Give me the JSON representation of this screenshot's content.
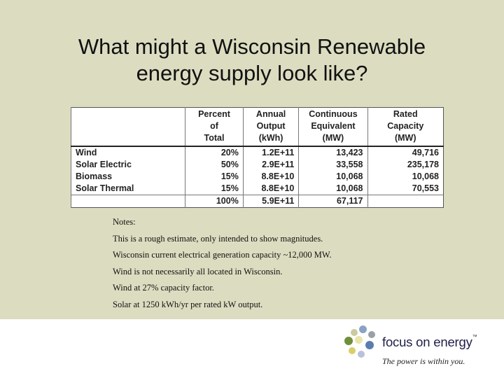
{
  "title": {
    "line1": "What might a Wisconsin Renewable",
    "line2": "energy supply look like?"
  },
  "table": {
    "headers": [
      "",
      "Percent of Total",
      "Annual Output (kWh)",
      "Continuous Equivalent (MW)",
      "Rated Capacity (MW)"
    ],
    "header_lines": [
      [
        ""
      ],
      [
        "Percent",
        "of",
        "Total"
      ],
      [
        "Annual",
        "Output",
        "(kWh)"
      ],
      [
        "Continuous",
        "Equivalent",
        "(MW)"
      ],
      [
        "Rated",
        "Capacity",
        "(MW)"
      ]
    ],
    "rows": [
      {
        "label": "Wind",
        "percent": "20%",
        "output": "1.2E+11",
        "continuous": "13,423",
        "rated": "49,716"
      },
      {
        "label": "Solar Electric",
        "percent": "50%",
        "output": "2.9E+11",
        "continuous": "33,558",
        "rated": "235,178"
      },
      {
        "label": "Biomass",
        "percent": "15%",
        "output": "8.8E+10",
        "continuous": "10,068",
        "rated": "10,068"
      },
      {
        "label": "Solar Thermal",
        "percent": "15%",
        "output": "8.8E+10",
        "continuous": "10,068",
        "rated": "70,553"
      }
    ],
    "total": {
      "label": "",
      "percent": "100%",
      "output": "5.9E+11",
      "continuous": "67,117",
      "rated": ""
    }
  },
  "notes": [
    "Notes:",
    "This is a rough estimate, only intended to show magnitudes.",
    "Wisconsin current electrical generation capacity ~12,000 MW.",
    "Wind is not necessarily all located in Wisconsin.",
    "Wind at 27% capacity factor.",
    "Solar at 1250 kWh/yr per rated kW output."
  ],
  "logo": {
    "brand": "focus on energy",
    "trademark": "™",
    "tagline": "The power is within you.",
    "dot_colors": [
      "#c9cba0",
      "#8aa3c4",
      "#6f8f3a",
      "#e8e6a8",
      "#9aa0a8",
      "#5b7cae",
      "#d8cf6a",
      "#b9c2d8"
    ]
  },
  "colors": {
    "slide_background": "#dcdcc0",
    "table_background": "#ffffff"
  }
}
